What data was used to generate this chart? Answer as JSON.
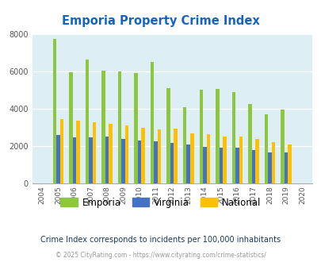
{
  "title": "Emporia Property Crime Index",
  "years": [
    2004,
    2005,
    2006,
    2007,
    2008,
    2009,
    2010,
    2011,
    2012,
    2013,
    2014,
    2015,
    2016,
    2017,
    2018,
    2019,
    2020
  ],
  "emporia": [
    0,
    7750,
    5950,
    6650,
    6050,
    6000,
    5900,
    6500,
    5100,
    4100,
    5000,
    5050,
    4900,
    4250,
    3700,
    3950,
    0
  ],
  "virginia": [
    0,
    2600,
    2450,
    2480,
    2500,
    2400,
    2300,
    2250,
    2150,
    2100,
    1950,
    1900,
    1900,
    1800,
    1650,
    1650,
    0
  ],
  "national": [
    0,
    3450,
    3350,
    3280,
    3200,
    3100,
    2980,
    2900,
    2930,
    2700,
    2620,
    2500,
    2500,
    2380,
    2220,
    2100,
    0
  ],
  "emporia_color": "#8DC63F",
  "virginia_color": "#4472C4",
  "national_color": "#FFC000",
  "bg_color": "#ddeef5",
  "ylim": [
    0,
    8000
  ],
  "yticks": [
    0,
    2000,
    4000,
    6000,
    8000
  ],
  "subtitle": "Crime Index corresponds to incidents per 100,000 inhabitants",
  "footer": "© 2025 CityRating.com - https://www.cityrating.com/crime-statistics/",
  "title_color": "#1565C0",
  "subtitle_color": "#1a3a5c",
  "footer_color": "#999999",
  "footer_link_color": "#4472C4",
  "bar_width": 0.22
}
